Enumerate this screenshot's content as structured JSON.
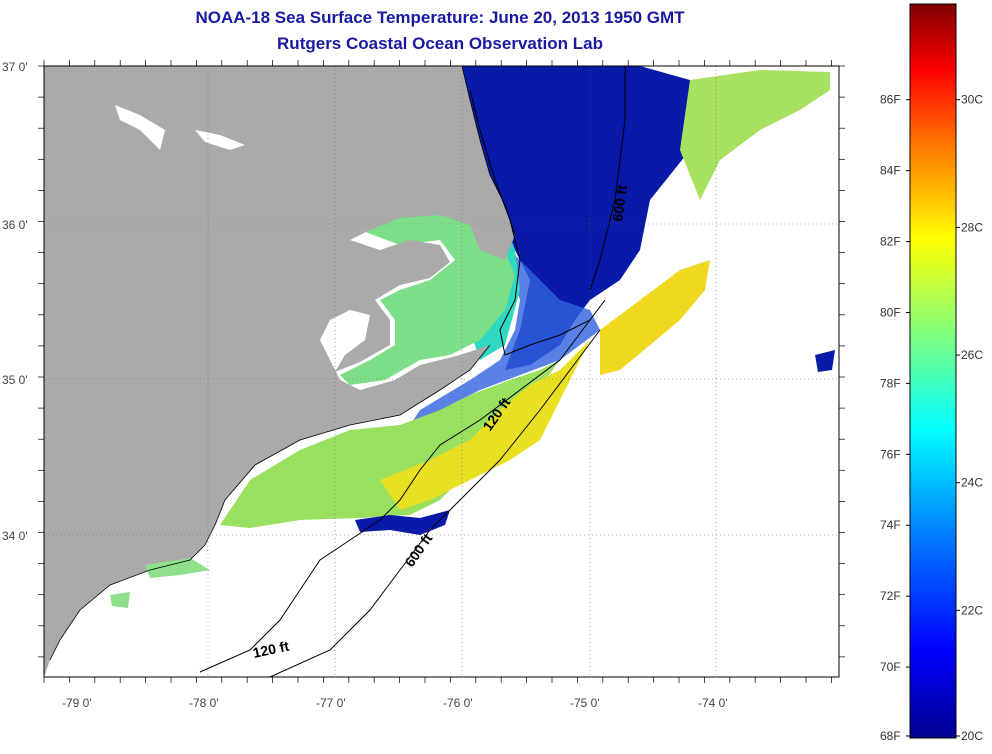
{
  "title": {
    "line1": "NOAA-18 Sea Surface Temperature:  June 20, 2013 1950 GMT",
    "line2": "Rutgers Coastal Ocean Observation Lab"
  },
  "axes": {
    "lat_labels": [
      "37 0'",
      "36 0'",
      "35 0'",
      "34 0'"
    ],
    "lon_labels": [
      "-79 0'",
      "-78 0'",
      "-77 0'",
      "-76 0'",
      "-75 0'",
      "-74 0'"
    ]
  },
  "contours": {
    "labels": [
      "600 ft",
      "120 ft",
      "600 ft",
      "120 ft"
    ]
  },
  "colorbar": {
    "fahrenheit": [
      "86F",
      "84F",
      "82F",
      "80F",
      "78F",
      "76F",
      "74F",
      "72F",
      "70F",
      "68F"
    ],
    "celsius": [
      "30C",
      "28C",
      "26C",
      "24C",
      "22C",
      "20C"
    ],
    "range_c": [
      20,
      31.5
    ],
    "stops": [
      "#00008f",
      "#0000ff",
      "#0080ff",
      "#00ffff",
      "#80ff80",
      "#ffff00",
      "#ff8000",
      "#ff0000",
      "#800000"
    ]
  },
  "colors": {
    "land": "#aaaaaa",
    "cold_water": "#0a1aa8",
    "shelf_water": "#6ed68a",
    "warm_water": "#e8e020",
    "frame": "#000000"
  }
}
